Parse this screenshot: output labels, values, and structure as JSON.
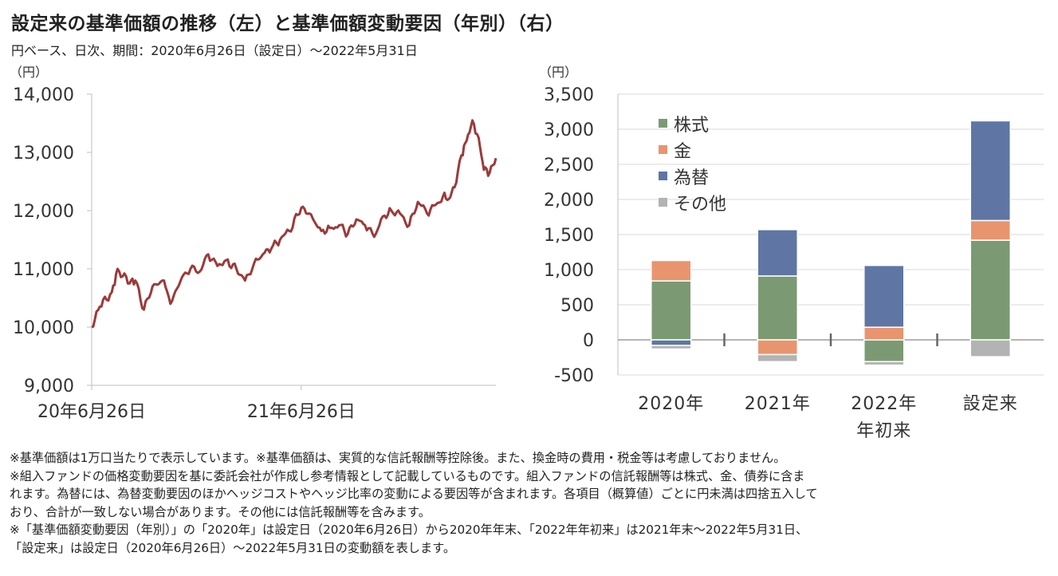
{
  "title": "設定来の基準価額の推移（左）と基準価額変動要因（年別）（右）",
  "subtitle": "円ベース、日次、期間：2020年6月26日（設定日）～2022年5月31日",
  "chart_data": [
    {
      "type": "line",
      "ylabel": "（円）",
      "ylim": [
        9000,
        14000
      ],
      "yticks": [
        9000,
        10000,
        11000,
        12000,
        13000,
        14000
      ],
      "ytick_labels": [
        "9,000",
        "10,000",
        "11,000",
        "12,000",
        "13,000",
        "14,000"
      ],
      "xlim": [
        "2020-06-26",
        "2022-05-31"
      ],
      "xticks": [
        "2020-06-26",
        "2021-06-26"
      ],
      "xtick_labels": [
        "20年6月26日",
        "21年6月26日"
      ],
      "line_color": "#9c3a3a",
      "series": [
        {
          "x": [
            "2020-06-26",
            "2020-07-10",
            "2020-07-31",
            "2020-08-10",
            "2020-08-31",
            "2020-09-10",
            "2020-09-25",
            "2020-10-10",
            "2020-10-30",
            "2020-11-10",
            "2020-11-30",
            "2020-12-15",
            "2020-12-31",
            "2021-01-15",
            "2021-01-31",
            "2021-02-15",
            "2021-03-05",
            "2021-03-20",
            "2021-04-05",
            "2021-04-20",
            "2021-05-05",
            "2021-05-20",
            "2021-06-05",
            "2021-06-26",
            "2021-07-10",
            "2021-07-31",
            "2021-08-15",
            "2021-08-31",
            "2021-09-15",
            "2021-09-30",
            "2021-10-15",
            "2021-10-31",
            "2021-11-15",
            "2021-11-30",
            "2021-12-15",
            "2021-12-31",
            "2022-01-15",
            "2022-01-31",
            "2022-02-15",
            "2022-02-28",
            "2022-03-10",
            "2022-03-20",
            "2022-04-01",
            "2022-04-10",
            "2022-04-20",
            "2022-05-01",
            "2022-05-10",
            "2022-05-20",
            "2022-05-31"
          ],
          "y": [
            10000,
            10350,
            10600,
            11000,
            10750,
            10800,
            10300,
            10700,
            10800,
            10400,
            10850,
            11000,
            10950,
            11250,
            11050,
            11150,
            11000,
            10800,
            11100,
            11250,
            11350,
            11500,
            11650,
            12050,
            11950,
            11650,
            11700,
            11750,
            11600,
            11850,
            11750,
            11550,
            11900,
            12000,
            11950,
            11750,
            12150,
            11950,
            12100,
            12250,
            12200,
            12400,
            12950,
            13200,
            13550,
            13250,
            12700,
            12650,
            12900
          ]
        }
      ]
    },
    {
      "type": "bar",
      "stacked": true,
      "ylabel": "（円）",
      "ylim": [
        -500,
        3500
      ],
      "yticks": [
        -500,
        0,
        500,
        1000,
        1500,
        2000,
        2500,
        3000,
        3500
      ],
      "ytick_labels": [
        "-500",
        "0",
        "500",
        "1,000",
        "1,500",
        "2,000",
        "2,500",
        "3,000",
        "3,500"
      ],
      "categories": [
        "2020年",
        "2021年",
        "2022年\n年初来",
        "設定来"
      ],
      "category_lines": [
        [
          "2020年"
        ],
        [
          "2021年"
        ],
        [
          "2022年",
          "年初来"
        ],
        [
          "設定来"
        ]
      ],
      "legend_position": "top-left",
      "series": [
        {
          "name": "株式",
          "color": "#7b9a73",
          "values": [
            840,
            910,
            -310,
            1420
          ]
        },
        {
          "name": "金",
          "color": "#e8956f",
          "values": [
            290,
            -210,
            180,
            280
          ]
        },
        {
          "name": "為替",
          "color": "#5f76a4",
          "values": [
            -80,
            660,
            880,
            1420
          ]
        },
        {
          "name": "その他",
          "color": "#b3b3b3",
          "values": [
            -50,
            -100,
            -50,
            -240
          ]
        }
      ]
    }
  ],
  "notes": [
    "※基準価額は1万口当たりで表示しています。※基準価額は、実質的な信託報酬等控除後。また、換金時の費用・税金等は考慮しておりません。",
    "※組入ファンドの価格変動要因を基に委託会社が作成し参考情報として記載しているものです。組入ファンドの信託報酬等は株式、金、債券に含ま",
    "れます。為替には、為替変動要因のほかヘッジコストやヘッジ比率の変動による要因等が含まれます。各項目（概算値）ごとに円未満は四捨五入して",
    "おり、合計が一致しない場合があります。その他には信託報酬等を含みます。",
    "※「基準価額変動要因（年別）」の「2020年」は設定日（2020年6月26日）から2020年年末、「2022年年初来」は2021年末～2022年5月31日、",
    "「設定来」は設定日（2020年6月26日）～2022年5月31日の変動額を表します。"
  ]
}
